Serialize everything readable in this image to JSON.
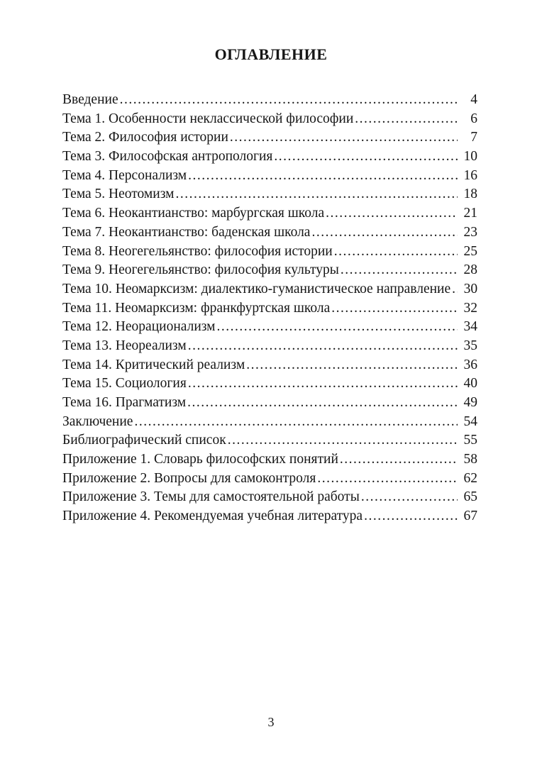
{
  "page": {
    "title": "ОГЛАВЛЕНИЕ",
    "folio": "3"
  },
  "toc": {
    "entries": [
      {
        "label": "Введение",
        "page": "4"
      },
      {
        "label": "Тема 1. Особенности неклассической философии",
        "page": "6"
      },
      {
        "label": "Тема 2. Философия истории",
        "page": "7"
      },
      {
        "label": "Тема 3. Философская антропология",
        "page": "10"
      },
      {
        "label": "Тема 4. Персонализм",
        "page": "16"
      },
      {
        "label": "Тема 5. Неотомизм",
        "page": "18"
      },
      {
        "label": "Тема 6. Неокантианство: марбургская школа",
        "page": "21"
      },
      {
        "label": "Тема 7. Неокантианство: баденская школа",
        "page": "23"
      },
      {
        "label": "Тема 8. Неогегельянство: философия истории",
        "page": "25"
      },
      {
        "label": "Тема 9. Неогегельянство: философия культуры",
        "page": "28"
      },
      {
        "label": "Тема 10. Неомарксизм: диалектико-гуманистическое направление",
        "page": "30"
      },
      {
        "label": "Тема 11. Неомарксизм: франкфуртская школа",
        "page": "32"
      },
      {
        "label": "Тема 12. Неорационализм",
        "page": "34"
      },
      {
        "label": "Тема 13. Неореализм",
        "page": "35"
      },
      {
        "label": "Тема 14. Критический реализм",
        "page": "36"
      },
      {
        "label": "Тема 15. Социология",
        "page": "40"
      },
      {
        "label": "Тема 16. Прагматизм",
        "page": "49"
      },
      {
        "label": "Заключение",
        "page": "54"
      },
      {
        "label": "Библиографический список",
        "page": "55"
      },
      {
        "label": "Приложение 1. Словарь философских понятий",
        "page": "58"
      },
      {
        "label": "Приложение 2. Вопросы для самоконтроля",
        "page": "62"
      },
      {
        "label": "Приложение 3. Темы для самостоятельной работы",
        "page": "65"
      },
      {
        "label": "Приложение 4. Рекомендуемая учебная литература",
        "page": "67"
      }
    ]
  }
}
